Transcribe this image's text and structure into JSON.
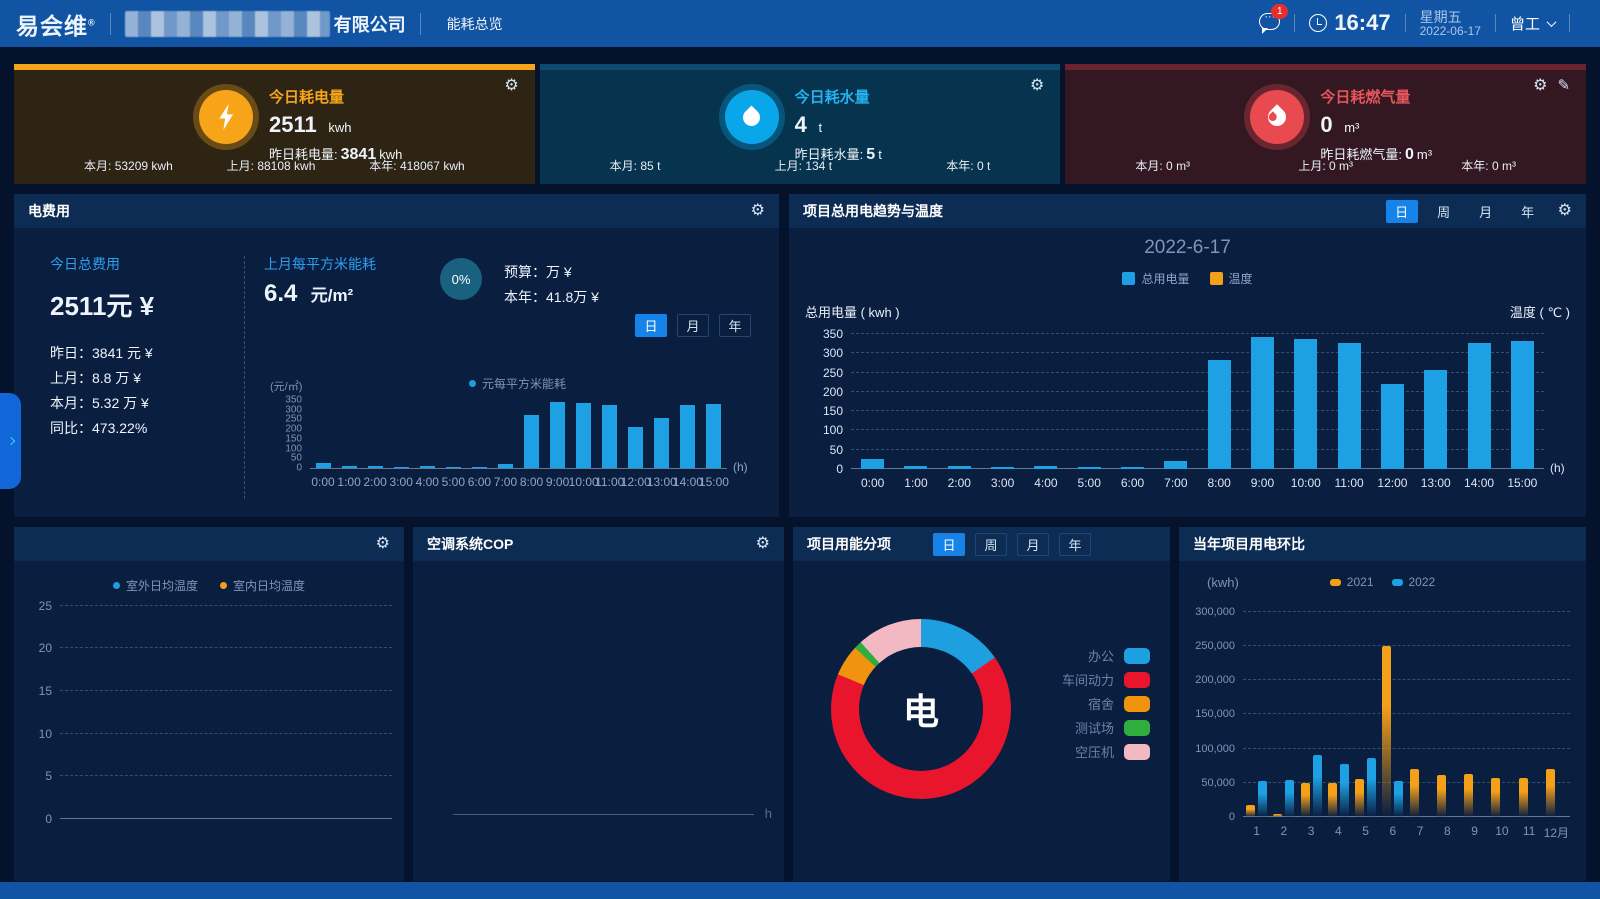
{
  "header": {
    "logo": "易会维",
    "logo_reg": "®",
    "company_suffix": "有限公司",
    "nav": "能耗总览",
    "badge_count": "1",
    "time": "16:47",
    "weekday": "星期五",
    "date": "2022-06-17",
    "user": "曾工"
  },
  "cards": [
    {
      "title": "今日耗电量",
      "value": "2511",
      "unit": "kwh",
      "yesterday_label": "昨日耗电量:",
      "yesterday_value": "3841",
      "yesterday_unit": "kwh",
      "accent": "#f6a41c",
      "stats": [
        {
          "label": "本月:",
          "value": "53209",
          "unit": "kwh"
        },
        {
          "label": "上月:",
          "value": "88108",
          "unit": "kwh"
        },
        {
          "label": "本年:",
          "value": "418067",
          "unit": "kwh"
        }
      ]
    },
    {
      "title": "今日耗水量",
      "value": "4",
      "unit": "t",
      "yesterday_label": "昨日耗水量:",
      "yesterday_value": "5",
      "yesterday_unit": "t",
      "accent": "#09a6ea",
      "stats": [
        {
          "label": "本月:",
          "value": "85",
          "unit": "t"
        },
        {
          "label": "上月:",
          "value": "134",
          "unit": "t"
        },
        {
          "label": "本年:",
          "value": "0",
          "unit": "t"
        }
      ]
    },
    {
      "title": "今日耗燃气量",
      "value": "0",
      "unit": "m³",
      "yesterday_label": "昨日耗燃气量:",
      "yesterday_value": "0",
      "yesterday_unit": "m³",
      "accent": "#e84a50",
      "stats": [
        {
          "label": "本月:",
          "value": "0",
          "unit": "m³"
        },
        {
          "label": "上月:",
          "value": "0",
          "unit": "m³"
        },
        {
          "label": "本年:",
          "value": "0",
          "unit": "m³"
        }
      ]
    }
  ],
  "cost_panel": {
    "title": "电费用",
    "today_label": "今日总费用",
    "today_value": "2511元 ¥",
    "rows": [
      "昨日：3841 元 ¥",
      "上月：8.8 万 ¥",
      "本月：5.32 万 ¥",
      "同比：473.22%"
    ],
    "sqm_label": "上月每平方米能耗",
    "sqm_value": "6.4",
    "sqm_unit": "元/m²",
    "pct": "0%",
    "budget_row": "预算：万 ¥",
    "year_row": "本年：41.8万 ¥",
    "tabs": [
      "日",
      "月",
      "年"
    ],
    "legend": "元每平方米能耗"
  },
  "trend_panel": {
    "title": "项目总用电趋势与温度",
    "tabs": [
      "日",
      "周",
      "月",
      "年"
    ],
    "chart_title": "2022-6-17",
    "left_axis": "总用电量 ( kwh )",
    "right_axis": "温度 ( ℃ )"
  },
  "temp_panel": {
    "legend": [
      "室外日均温度",
      "室内日均温度"
    ]
  },
  "cop_panel": {
    "title": "空调系统COP",
    "x_unit": "h"
  },
  "breakdown_panel": {
    "title": "项目用能分项",
    "tabs": [
      "日",
      "周",
      "月",
      "年"
    ],
    "center": "电"
  },
  "yoy_panel": {
    "title": "当年项目用电环比",
    "y_unit": "(kwh)"
  },
  "chart_data": [
    {
      "id": "cost_hourly",
      "type": "bar",
      "title": "",
      "ylabel": "(元/㎡)",
      "x_unit": "(h)",
      "legend": [
        "元每平方米能耗"
      ],
      "categories": [
        "0:00",
        "1:00",
        "2:00",
        "3:00",
        "4:00",
        "5:00",
        "6:00",
        "7:00",
        "8:00",
        "9:00",
        "10:00",
        "11:00",
        "12:00",
        "13:00",
        "14:00",
        "15:00"
      ],
      "values": [
        25,
        8,
        8,
        5,
        10,
        6,
        4,
        20,
        275,
        340,
        335,
        325,
        210,
        255,
        325,
        330
      ],
      "yticks": [
        0,
        50,
        100,
        150,
        200,
        250,
        300,
        350
      ],
      "ylim": [
        0,
        350
      ],
      "color": "#1da1e4",
      "grid": false
    },
    {
      "id": "power_trend",
      "type": "bar",
      "title": "2022-6-17",
      "ylabel": "总用电量 ( kwh )",
      "ylabel_right": "温度 ( ℃ )",
      "x_unit": "(h)",
      "legend": [
        {
          "name": "总用电量",
          "color": "#1da1e4"
        },
        {
          "name": "温度",
          "color": "#f5a019"
        }
      ],
      "categories": [
        "0:00",
        "1:00",
        "2:00",
        "3:00",
        "4:00",
        "5:00",
        "6:00",
        "7:00",
        "8:00",
        "9:00",
        "10:00",
        "11:00",
        "12:00",
        "13:00",
        "14:00",
        "15:00"
      ],
      "values": [
        25,
        7,
        7,
        5,
        9,
        6,
        4,
        20,
        283,
        342,
        337,
        328,
        220,
        258,
        328,
        333
      ],
      "yticks": [
        0,
        50,
        100,
        150,
        200,
        250,
        300,
        350
      ],
      "ylim": [
        0,
        350
      ],
      "color": "#1da1e4",
      "grid": true
    },
    {
      "id": "temperature",
      "type": "line",
      "legend": [
        {
          "name": "室外日均温度",
          "color": "#1e9fe0"
        },
        {
          "name": "室内日均温度",
          "color": "#f5a019"
        }
      ],
      "series": [],
      "yticks": [
        0,
        5,
        10,
        15,
        20,
        25
      ],
      "ylim": [
        0,
        26
      ],
      "grid": true
    },
    {
      "id": "cop",
      "type": "line",
      "series": [],
      "x_unit": "h",
      "grid": false
    },
    {
      "id": "energy_breakdown",
      "type": "pie",
      "center_label": "电",
      "segments": [
        {
          "name": "办公",
          "pct": 15.3,
          "color": "#1e9fe0"
        },
        {
          "name": "车间动力",
          "pct": 66.0,
          "color": "#e9152d"
        },
        {
          "name": "宿舍",
          "pct": 5.6,
          "color": "#f0930f"
        },
        {
          "name": "测试场",
          "pct": 1.4,
          "color": "#2fae3e"
        },
        {
          "name": "空压机",
          "pct": 11.7,
          "color": "#f3b9c3"
        }
      ]
    },
    {
      "id": "yoy",
      "type": "bar",
      "ylabel": "(kwh)",
      "categories": [
        "1",
        "2",
        "3",
        "4",
        "5",
        "6",
        "7",
        "8",
        "9",
        "10",
        "11",
        "12月"
      ],
      "series": [
        {
          "name": "2021",
          "color": "#f5a019",
          "values": [
            18000,
            5000,
            50000,
            50000,
            55000,
            250000,
            70000,
            62000,
            63000,
            57000,
            57000,
            70000
          ]
        },
        {
          "name": "2022",
          "color": "#1da1e4",
          "values": [
            53000,
            54000,
            90000,
            77000,
            87000,
            52000,
            0,
            0,
            0,
            0,
            0,
            0
          ]
        }
      ],
      "yticks": [
        0,
        50000,
        100000,
        150000,
        200000,
        250000,
        300000
      ],
      "ylim": [
        0,
        310000
      ],
      "grid": true
    }
  ]
}
